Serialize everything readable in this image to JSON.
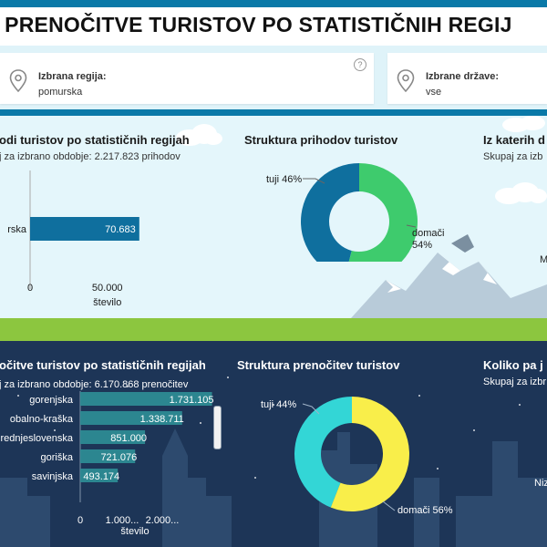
{
  "header": {
    "title": "I PRENOČITVE TURISTOV PO STATISTIČNIH REGIJ"
  },
  "filters": {
    "region_label": "Izbrana regija:",
    "region_value": "pomurska",
    "help_glyph": "?",
    "countries_label": "Izbrane države:",
    "countries_value": "vse"
  },
  "colors": {
    "accent": "#0a79a8",
    "foreign_income": "#0f6f9e",
    "domestic_income": "#3ecb6d",
    "foreign_nights": "#33d6d6",
    "domestic_nights": "#f9ee4a",
    "grass": "#8cc63f",
    "night": "#1d3557"
  },
  "income_bars": {
    "title": "odi turistov po statističnih regijah",
    "subtitle": "j za izbrano obdobje: 2.217.823 prihodov",
    "xlabel": "število",
    "chart_data": {
      "type": "bar",
      "categories": [
        "rska"
      ],
      "values": [
        70683
      ],
      "value_labels": [
        "70.683"
      ],
      "ticks": [
        0,
        50000
      ],
      "tick_labels": [
        "0",
        "50.000"
      ],
      "xlim": [
        0,
        118000
      ]
    }
  },
  "income_structure": {
    "title": "Struktura prihodov turistov",
    "chart_data": {
      "type": "pie",
      "labels": [
        "tuji",
        "domači"
      ],
      "values": [
        46,
        54
      ],
      "value_labels": [
        "46%",
        "54%"
      ]
    }
  },
  "income_origin": {
    "title": "Iz katerih d",
    "subtitle": "Skupaj za izb",
    "cut_label": "M"
  },
  "nights_bars": {
    "title": "očitve turistov po statističnih regijah",
    "subtitle": "j za izbrano obdobje: 6.170.868 prenočitev",
    "xlabel": "število",
    "chart_data": {
      "type": "bar",
      "categories": [
        "gorenjska",
        "obalno-kraška",
        "rednjeslovenska",
        "goriška",
        "savinjska"
      ],
      "values": [
        1731105,
        1338711,
        851000,
        721076,
        493174
      ],
      "value_labels": [
        "1.731.105",
        "1.338.711",
        "851.000",
        "721.076",
        "493.174"
      ],
      "ticks": [
        0,
        1000000,
        2000000
      ],
      "tick_labels": [
        "0",
        "1.000...",
        "2.000..."
      ],
      "xlim": [
        0,
        2000000
      ]
    }
  },
  "nights_structure": {
    "title": "Struktura prenočitev turistov",
    "chart_data": {
      "type": "pie",
      "labels": [
        "tuji",
        "domači"
      ],
      "values": [
        44,
        56
      ],
      "value_labels": [
        "44%",
        "56%"
      ]
    }
  },
  "nights_duration": {
    "title": "Koliko pa j",
    "subtitle": "Skupaj za izbr",
    "cut_label": "Niz"
  }
}
